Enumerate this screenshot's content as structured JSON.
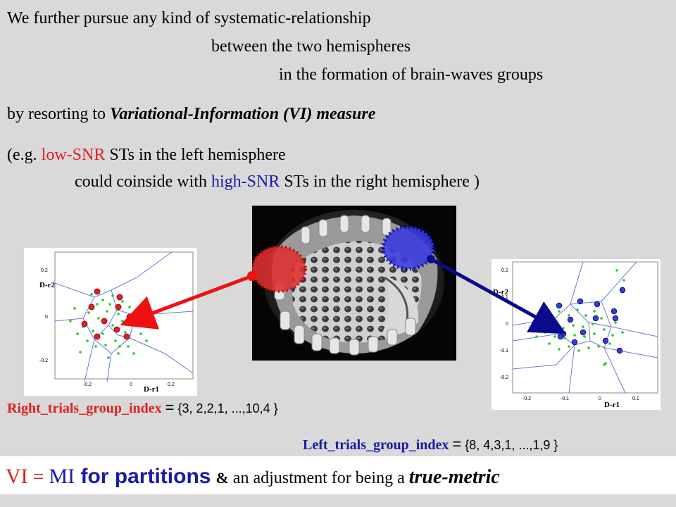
{
  "intro": {
    "line1": "We further pursue any kind  of systematic-relationship",
    "line2": "between the two hemispheres",
    "line3": "in the formation of brain-waves groups",
    "line4_prefix": "by resorting to ",
    "line4_emph": "Variational-Information   (VI)  measure",
    "line5_prefix": "(e.g. ",
    "line5_red": "low-SNR",
    "line5_suffix": " STs in the left hemisphere",
    "line6_prefix": "could coinside with ",
    "line6_blue": "high-SNR",
    "line6_suffix": "  STs in the right hemisphere  )"
  },
  "left_plot": {
    "ylabel": "D-r2",
    "xlabel": "D-r1",
    "yticks": [
      "0.2",
      "0",
      "-0.2"
    ],
    "xticks": [
      "-0.2",
      "0",
      "0.2"
    ]
  },
  "right_plot": {
    "ylabel": "D-r2",
    "xlabel": "D-r1",
    "yticks": [
      "0.2",
      "0.1",
      "0",
      "-0.1",
      "-0.2"
    ],
    "xticks": [
      "-0.2",
      "-0.1",
      "0",
      "0.1"
    ]
  },
  "indices": {
    "right_name": "Right_trials_group_index",
    "right_eq": "=",
    "right_values": "{3, 2,2,1, ...,10,4 }",
    "left_name": "Left_trials_group_index",
    "left_eq": "=",
    "left_values": "{8, 4,3,1, ...,1,9 }"
  },
  "conclusion": {
    "vi": "VI",
    "eq": " = ",
    "mi": "MI",
    "for_partitions": "  for partitions",
    "amp": "&",
    "rest": " an adjustment for being a ",
    "true_metric": "true-metric"
  },
  "colors": {
    "background": "#d9d9d9",
    "red": "#e02020",
    "blue": "#1a1aa8",
    "navy_arrow": "#0a0a8c",
    "red_arrow": "#ee1111"
  }
}
